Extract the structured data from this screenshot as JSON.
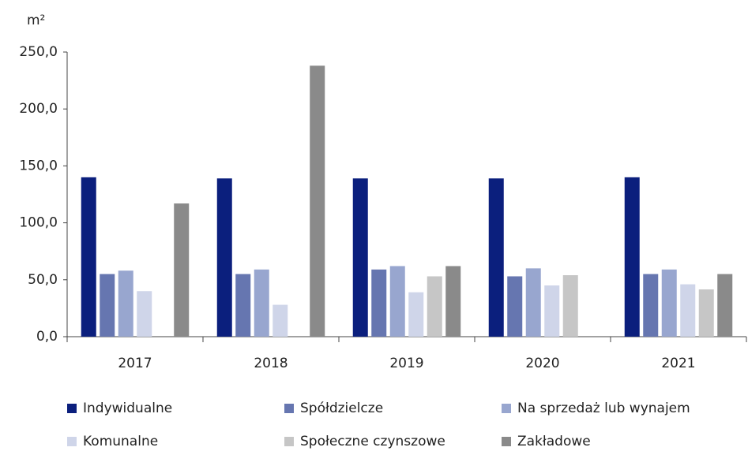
{
  "chart_data": {
    "type": "bar",
    "y_label": "m²",
    "categories": [
      "2017",
      "2018",
      "2019",
      "2020",
      "2021"
    ],
    "series": [
      {
        "name": "Indywidualne",
        "color": "#0b1f7d",
        "values": [
          140,
          139,
          139,
          139,
          140
        ]
      },
      {
        "name": "Spółdzielcze",
        "color": "#6676b0",
        "values": [
          55,
          55,
          59,
          53,
          55
        ]
      },
      {
        "name": "Na sprzedaż lub wynajem",
        "color": "#98a6cf",
        "values": [
          58,
          59,
          62,
          60,
          59
        ]
      },
      {
        "name": "Komunalne",
        "color": "#cfd5e9",
        "values": [
          40,
          28,
          39,
          45,
          46
        ]
      },
      {
        "name": "Społeczne czynszowe",
        "color": "#c6c6c6",
        "values": [
          null,
          null,
          53,
          54,
          41.5
        ]
      },
      {
        "name": "Zakładowe",
        "color": "#8a8a8a",
        "values": [
          117,
          238,
          62,
          null,
          55
        ]
      }
    ],
    "ylim": [
      0,
      250
    ],
    "yticks": [
      {
        "value": 0,
        "label": "0,0"
      },
      {
        "value": 50,
        "label": "50,0"
      },
      {
        "value": 100,
        "label": "100,0"
      },
      {
        "value": 150,
        "label": "150,0"
      },
      {
        "value": 200,
        "label": "200,0"
      },
      {
        "value": 250,
        "label": "250,0"
      }
    ],
    "legend": "bottom"
  }
}
